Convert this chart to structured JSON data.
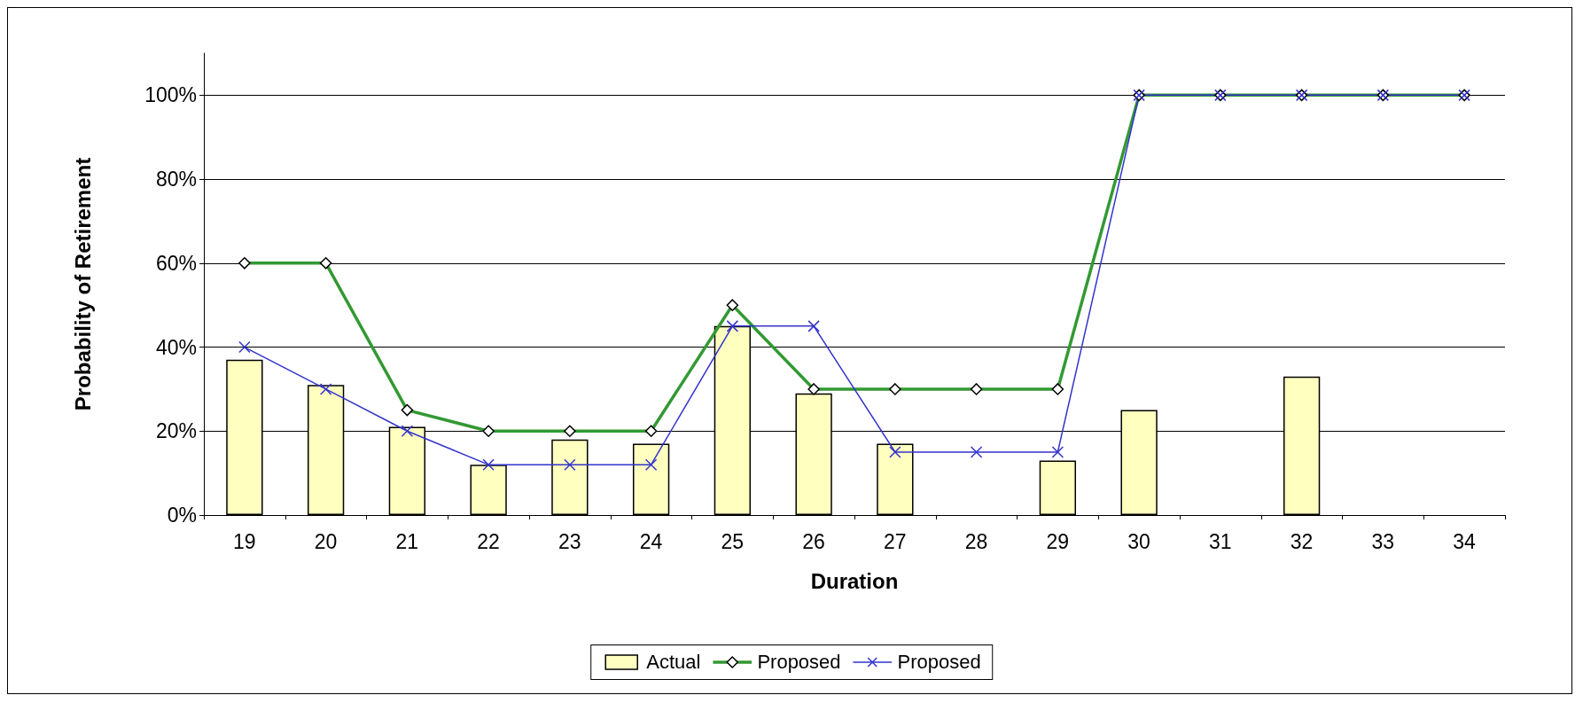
{
  "chart_data": {
    "type": "bar",
    "xlabel": "Duration",
    "ylabel": "Probability of Retirement",
    "categories": [
      "19",
      "20",
      "21",
      "22",
      "23",
      "24",
      "25",
      "26",
      "27",
      "28",
      "29",
      "30",
      "31",
      "32",
      "33",
      "34"
    ],
    "series": [
      {
        "name": "Actual",
        "color": "#ffffc0",
        "values": [
          37,
          31,
          21,
          12,
          18,
          17,
          45,
          29,
          17,
          null,
          13,
          25,
          null,
          33,
          null,
          null
        ]
      },
      {
        "name": "Proposed",
        "type": "line",
        "color": "#339933",
        "marker": "diamond",
        "values": [
          60,
          60,
          25,
          20,
          20,
          20,
          50,
          30,
          30,
          30,
          30,
          100,
          100,
          100,
          100,
          100
        ]
      },
      {
        "name": "Proposed",
        "type": "line",
        "color": "#3333cc",
        "marker": "cross",
        "values": [
          40,
          30,
          20,
          12,
          12,
          12,
          45,
          45,
          15,
          15,
          15,
          100,
          100,
          100,
          100,
          100
        ]
      }
    ],
    "ylim": [
      0,
      110
    ],
    "yticks": [
      {
        "value": 0,
        "label": "0%"
      },
      {
        "value": 20,
        "label": "20%"
      },
      {
        "value": 40,
        "label": "40%"
      },
      {
        "value": 60,
        "label": "60%"
      },
      {
        "value": 80,
        "label": "80%"
      },
      {
        "value": 100,
        "label": "100%"
      }
    ],
    "grid": "y",
    "legend": "bottom"
  }
}
